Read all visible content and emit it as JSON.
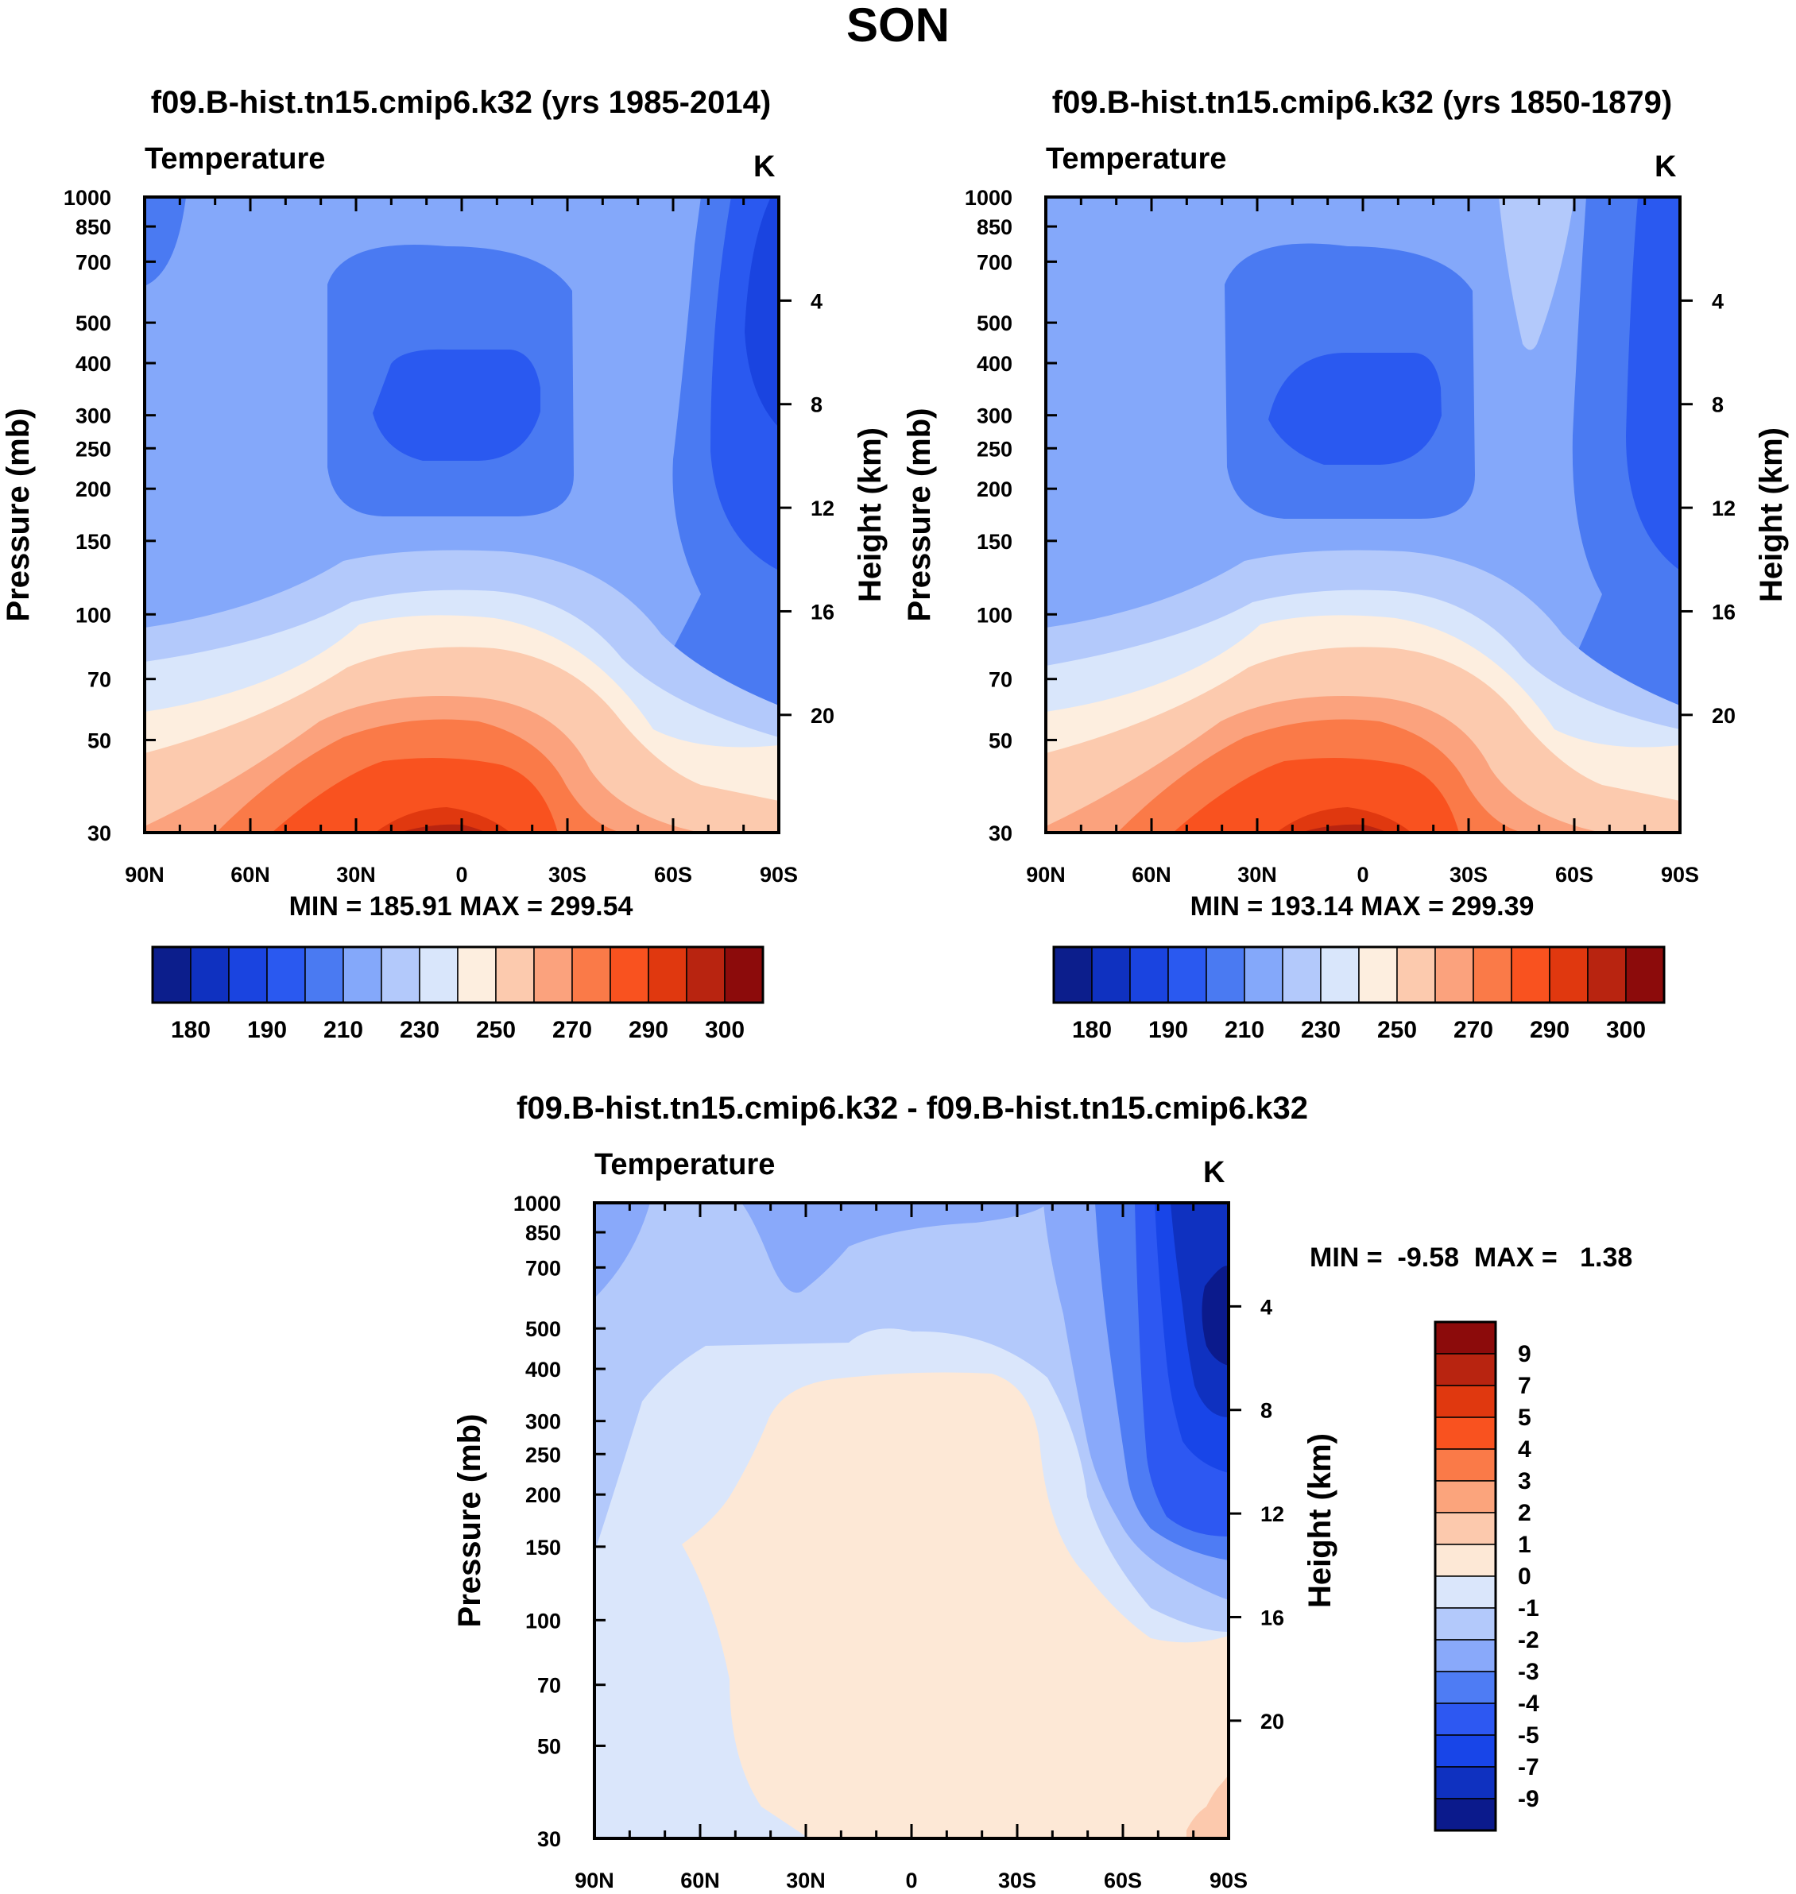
{
  "title": "SON",
  "colors": {
    "abs_palette": [
      "#0c1e8c",
      "#0f31c0",
      "#1a44e0",
      "#2a59f0",
      "#4a7af2",
      "#84a8fa",
      "#b3c9fb",
      "#d9e6fb",
      "#fdeedf",
      "#fccaae",
      "#fba27d",
      "#fa7a48",
      "#f9521f",
      "#e0380f",
      "#b82410",
      "#8c0b0b"
    ],
    "diff_palette": [
      "#0b1a8c",
      "#0f31c0",
      "#1845e8",
      "#2d58f2",
      "#4e7cf4",
      "#89a9fa",
      "#b3c9fb",
      "#dae6fb",
      "#fde8d6",
      "#fcc9ad",
      "#fba47c",
      "#fa7a48",
      "#f9521f",
      "#e0380f",
      "#b82410",
      "#8c0b0b"
    ]
  },
  "chart_data": [
    {
      "type": "contour",
      "title": "f09.B-hist.tn15.cmip6.k32 (yrs 1985-2014)",
      "variable": "Temperature",
      "units": "K",
      "ylabel": "Pressure (mb)",
      "ylabel_right": "Height (km)",
      "xticks": [
        "90N",
        "60N",
        "30N",
        "0",
        "30S",
        "60S",
        "90S"
      ],
      "pressure_ticks": [
        30,
        50,
        70,
        100,
        150,
        200,
        250,
        300,
        400,
        500,
        700,
        850,
        1000
      ],
      "height_ticks": [
        20,
        16,
        12,
        8,
        4
      ],
      "ylim": [
        1000,
        30
      ],
      "min": 185.91,
      "max": 299.54,
      "minmax_text": "MIN = 185.91  MAX = 299.54",
      "colorbar_labels": [
        "180",
        "190",
        "210",
        "230",
        "250",
        "270",
        "290",
        "300"
      ]
    },
    {
      "type": "contour",
      "title": "f09.B-hist.tn15.cmip6.k32 (yrs 1850-1879)",
      "variable": "Temperature",
      "units": "K",
      "ylabel": "Pressure (mb)",
      "ylabel_right": "Height (km)",
      "xticks": [
        "90N",
        "60N",
        "30N",
        "0",
        "30S",
        "60S",
        "90S"
      ],
      "pressure_ticks": [
        30,
        50,
        70,
        100,
        150,
        200,
        250,
        300,
        400,
        500,
        700,
        850,
        1000
      ],
      "height_ticks": [
        20,
        16,
        12,
        8,
        4
      ],
      "ylim": [
        1000,
        30
      ],
      "min": 193.14,
      "max": 299.39,
      "minmax_text": "MIN = 193.14  MAX = 299.39",
      "colorbar_labels": [
        "180",
        "190",
        "210",
        "230",
        "250",
        "270",
        "290",
        "300"
      ]
    },
    {
      "type": "contour",
      "title": "f09.B-hist.tn15.cmip6.k32 - f09.B-hist.tn15.cmip6.k32",
      "variable": "Temperature",
      "units": "K",
      "ylabel": "Pressure (mb)",
      "ylabel_right": "Height (km)",
      "xticks": [
        "90N",
        "60N",
        "30N",
        "0",
        "30S",
        "60S",
        "90S"
      ],
      "pressure_ticks": [
        30,
        50,
        70,
        100,
        150,
        200,
        250,
        300,
        400,
        500,
        700,
        850,
        1000
      ],
      "height_ticks": [
        20,
        16,
        12,
        8,
        4
      ],
      "ylim": [
        1000,
        30
      ],
      "min": -9.58,
      "max": 1.38,
      "minmax_text": "MIN =  -9.58  MAX =   1.38",
      "colorbar_labels": [
        "9",
        "7",
        "5",
        "4",
        "3",
        "2",
        "1",
        "0",
        "-1",
        "-2",
        "-3",
        "-4",
        "-5",
        "-7",
        "-9"
      ]
    }
  ]
}
